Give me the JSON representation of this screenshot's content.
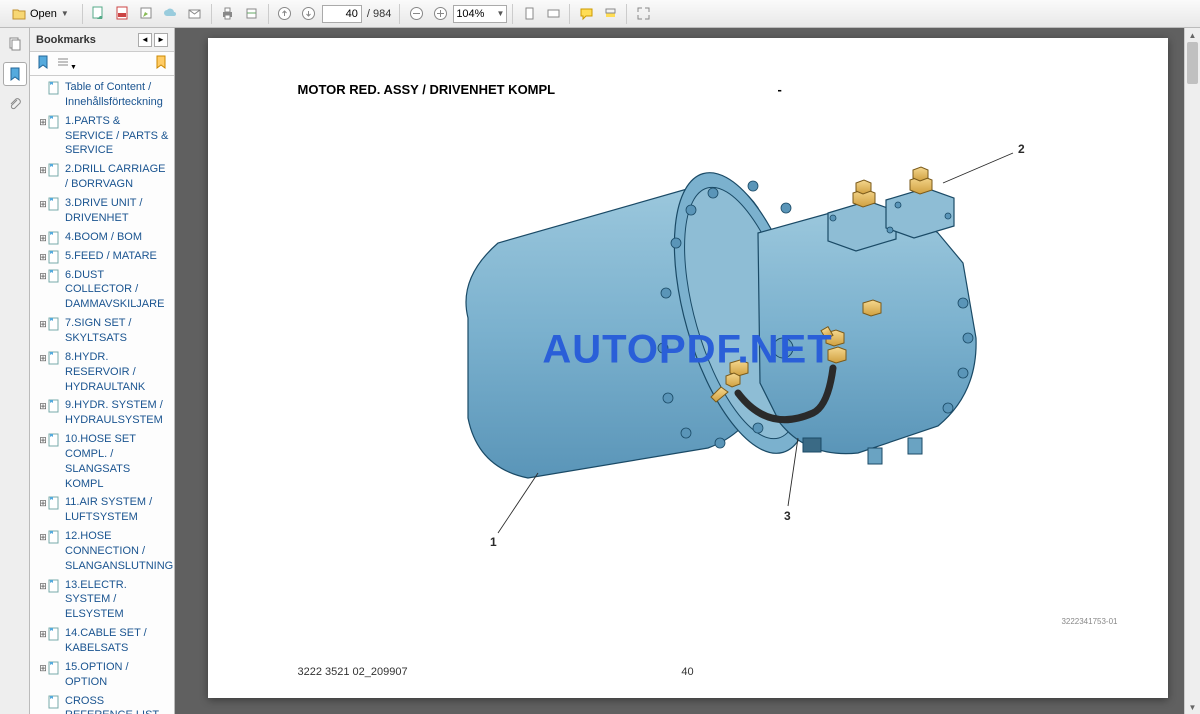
{
  "toolbar": {
    "open_label": "Open",
    "page_current": "40",
    "page_total": "/ 984",
    "zoom": "104%"
  },
  "bookmarks": {
    "title": "Bookmarks",
    "items": [
      {
        "label": "Table of Content / Innehållsförteckning",
        "expandable": false
      },
      {
        "label": "1.PARTS & SERVICE / PARTS & SERVICE",
        "expandable": true
      },
      {
        "label": "2.DRILL CARRIAGE / BORRVAGN",
        "expandable": true
      },
      {
        "label": "3.DRIVE UNIT / DRIVENHET",
        "expandable": true
      },
      {
        "label": "4.BOOM / BOM",
        "expandable": true
      },
      {
        "label": "5.FEED / MATARE",
        "expandable": true
      },
      {
        "label": "6.DUST COLLECTOR / DAMMAVSKILJARE",
        "expandable": true
      },
      {
        "label": "7.SIGN SET / SKYLTSATS",
        "expandable": true
      },
      {
        "label": "8.HYDR. RESERVOIR / HYDRAULTANK",
        "expandable": true
      },
      {
        "label": "9.HYDR. SYSTEM / HYDRAULSYSTEM",
        "expandable": true
      },
      {
        "label": "10.HOSE SET COMPL. / SLANGSATS KOMPL",
        "expandable": true
      },
      {
        "label": "11.AIR SYSTEM / LUFTSYSTEM",
        "expandable": true
      },
      {
        "label": "12.HOSE CONNECTION / SLANGANSLUTNING",
        "expandable": true
      },
      {
        "label": "13.ELECTR. SYSTEM / ELSYSTEM",
        "expandable": true
      },
      {
        "label": "14.CABLE SET / KABELSATS",
        "expandable": true
      },
      {
        "label": "15.OPTION / OPTION",
        "expandable": true
      },
      {
        "label": "CROSS REFERENCE LIST",
        "expandable": false
      }
    ]
  },
  "document": {
    "title": "MOTOR RED. ASSY / DRIVENHET KOMPL",
    "dash": "-",
    "footer_left": "3222 3521 02_209907",
    "footer_center": "40",
    "part_number": "3222341753-01",
    "watermark": "AUTOPDF.NET",
    "callouts": {
      "c1": "1",
      "c2": "2",
      "c3": "3"
    },
    "colors": {
      "body_fill": "#7bb1ce",
      "body_stroke": "#1a4a66",
      "fitting_fill": "#e8c068",
      "fitting_stroke": "#7a5a1a",
      "leader": "#2a2a2a"
    }
  }
}
